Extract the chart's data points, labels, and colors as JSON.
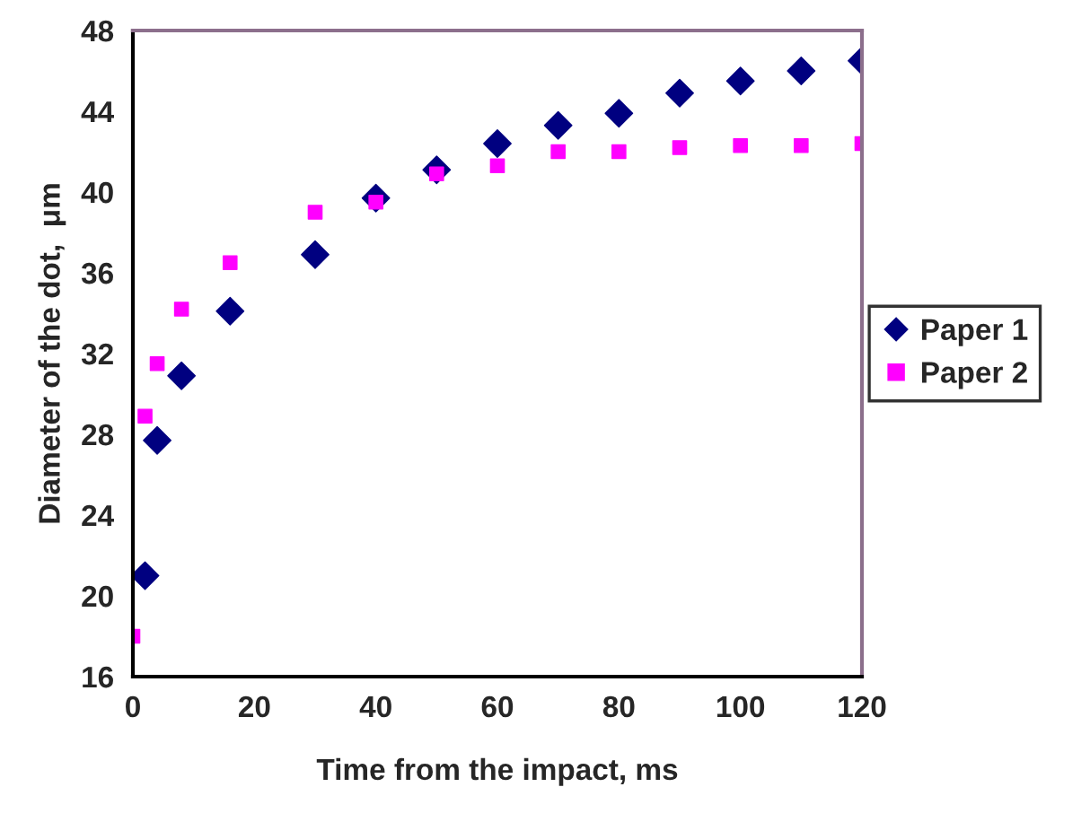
{
  "chart_data": {
    "type": "scatter",
    "xlabel": "Time from the impact, ms",
    "ylabel": "Diameter of the dot,  μm",
    "x": [
      0,
      2,
      4,
      8,
      16,
      30,
      40,
      50,
      60,
      70,
      80,
      90,
      100,
      110,
      120
    ],
    "series": [
      {
        "name": "Paper 1",
        "color": "#000080",
        "marker": "diamond",
        "values": [
          null,
          21.0,
          27.7,
          30.9,
          34.1,
          36.9,
          39.7,
          41.1,
          42.4,
          43.3,
          43.9,
          44.9,
          45.5,
          46.0,
          46.5
        ]
      },
      {
        "name": "Paper 2",
        "color": "#ff00ff",
        "marker": "square",
        "values": [
          18.0,
          28.9,
          31.5,
          34.2,
          36.5,
          39.0,
          39.5,
          40.9,
          41.3,
          42.0,
          42.0,
          42.2,
          42.3,
          42.3,
          42.4
        ]
      }
    ],
    "xlim": [
      0,
      120
    ],
    "xticks": [
      0,
      20,
      40,
      60,
      80,
      100,
      120
    ],
    "ylim": [
      16,
      48
    ],
    "yticks": [
      16,
      20,
      24,
      28,
      32,
      36,
      40,
      44,
      48
    ],
    "grid": false,
    "legend": "right"
  }
}
